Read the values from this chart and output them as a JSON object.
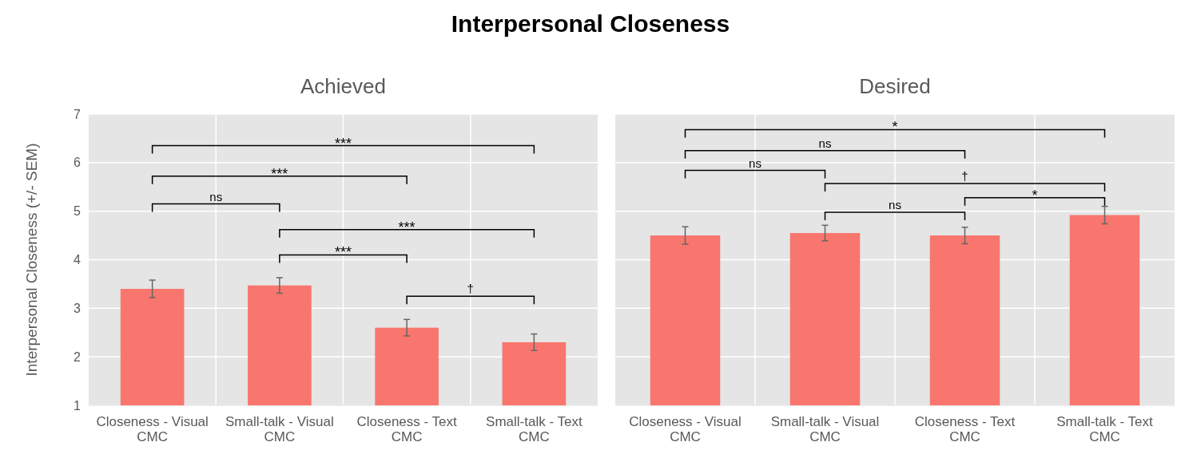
{
  "chart_data": [
    {
      "type": "bar",
      "title": "Interpersonal Closeness",
      "subtitle": "Achieved",
      "ylabel": "Interpersonal Closeness  (+/- SEM)",
      "categories": [
        "Closeness - Visual CMC",
        "Small-talk - Visual CMC",
        "Closeness - Text CMC",
        "Small-talk - Text CMC"
      ],
      "values": [
        3.4,
        3.47,
        2.6,
        2.3
      ],
      "errors": [
        0.18,
        0.16,
        0.17,
        0.17
      ],
      "color": "#f8766d",
      "ylim": [
        1,
        7
      ],
      "yticks": [
        1,
        2,
        3,
        4,
        5,
        6,
        7
      ],
      "grid": true,
      "annotations": [
        "***",
        "***",
        "ns",
        "***",
        "***",
        "†"
      ]
    },
    {
      "type": "bar",
      "title": "Desired",
      "categories": [
        "Closeness - Visual CMC",
        "Small-talk - Visual CMC",
        "Closeness - Text CMC",
        "Small-talk - Text CMC"
      ],
      "values": [
        4.5,
        4.55,
        4.5,
        4.92
      ],
      "errors": [
        0.18,
        0.16,
        0.17,
        0.18
      ],
      "color": "#f8766d",
      "ylim": [
        1,
        7
      ],
      "yticks": [
        1,
        2,
        3,
        4,
        5,
        6,
        7
      ],
      "grid": true,
      "tick_labels": "x",
      "annotations": [
        "*",
        "ns",
        "ns",
        "†",
        "*",
        "ns"
      ]
    }
  ]
}
